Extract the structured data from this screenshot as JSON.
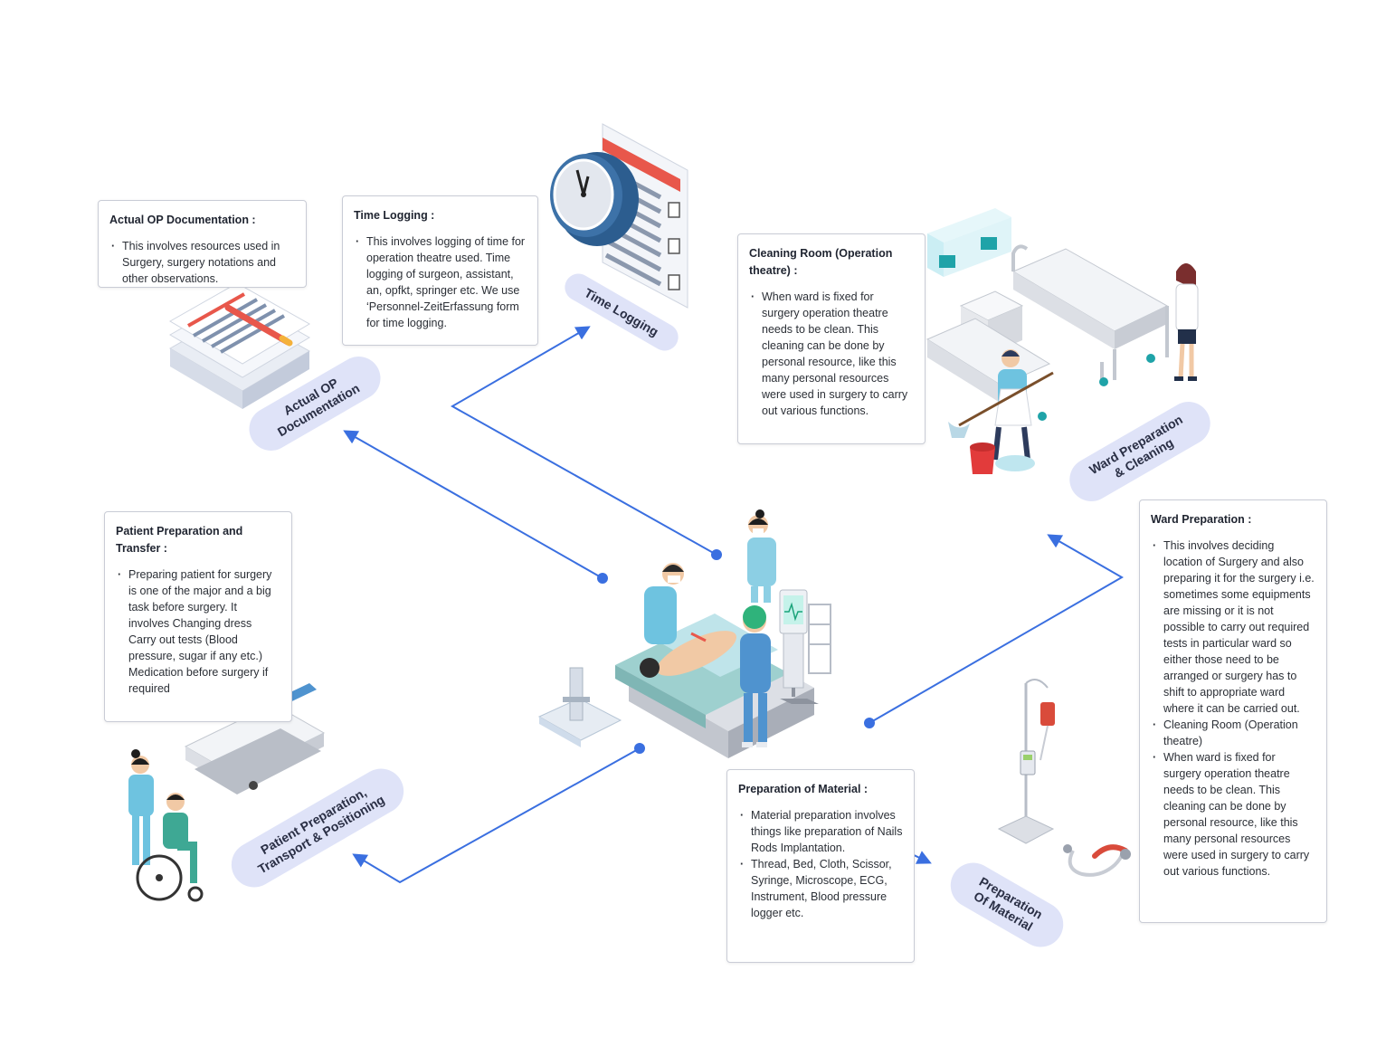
{
  "cards": [
    {
      "id": "op-doc",
      "title": "Actual OP Documentation :",
      "items": [
        "This involves resources used in Surgery, surgery notations and other observations."
      ]
    },
    {
      "id": "time-log",
      "title": "Time Logging :",
      "items": [
        "This involves logging of time for operation theatre used. Time logging of surgeon, assistant, an, opfkt, springer etc. We use ‘Personnel-ZeitErfassung form for time logging."
      ]
    },
    {
      "id": "cleaning",
      "title": "Cleaning Room (Operation theatre) :",
      "items": [
        "When ward is fixed for surgery operation theatre needs to be clean. This cleaning can be done by personal resource, like this many personal resources were used in surgery to carry out various functions."
      ]
    },
    {
      "id": "patient",
      "title": "Patient Preparation and Transfer :",
      "items": [
        "Preparing patient for surgery is one of the major and a big task before surgery. It involves Changing dress Carry out tests (Blood pressure, sugar if any etc.) Medication before surgery if required"
      ]
    },
    {
      "id": "ward",
      "title": "Ward Preparation :",
      "items": [
        "This involves deciding location of Surgery and also preparing it for the surgery i.e. sometimes some equipments are missing or it is not possible to carry out required tests in particular ward so either those need to be arranged or surgery has to shift to appropriate ward where it can be carried out.",
        "Cleaning Room (Operation theatre)",
        "When ward is fixed for surgery operation theatre needs to be clean. This cleaning can be done by personal resource, like this many personal resources were used in surgery to carry out various functions."
      ]
    },
    {
      "id": "material",
      "title": "Preparation of Material :",
      "items": [
        "Material preparation involves things like preparation of Nails Rods Implantation.",
        "Thread, Bed, Cloth, Scissor, Syringe, Microscope, ECG, Instrument, Blood pressure logger etc."
      ]
    }
  ],
  "pills": [
    {
      "id": "op-doc",
      "label": "Actual OP\nDocumentation"
    },
    {
      "id": "time-log",
      "label": "Time Logging"
    },
    {
      "id": "ward",
      "label": "Ward Preparation\n& Cleaning"
    },
    {
      "id": "patient",
      "label": "Patient Preparation,\nTransport & Positioning"
    },
    {
      "id": "material",
      "label": "Preparation\nOf Material"
    }
  ],
  "colors": {
    "arrow": "#3a6fe0",
    "pill_bg": "#dfe3f8",
    "scrubs": "#6ec3e0",
    "accent_red": "#e8574b"
  }
}
